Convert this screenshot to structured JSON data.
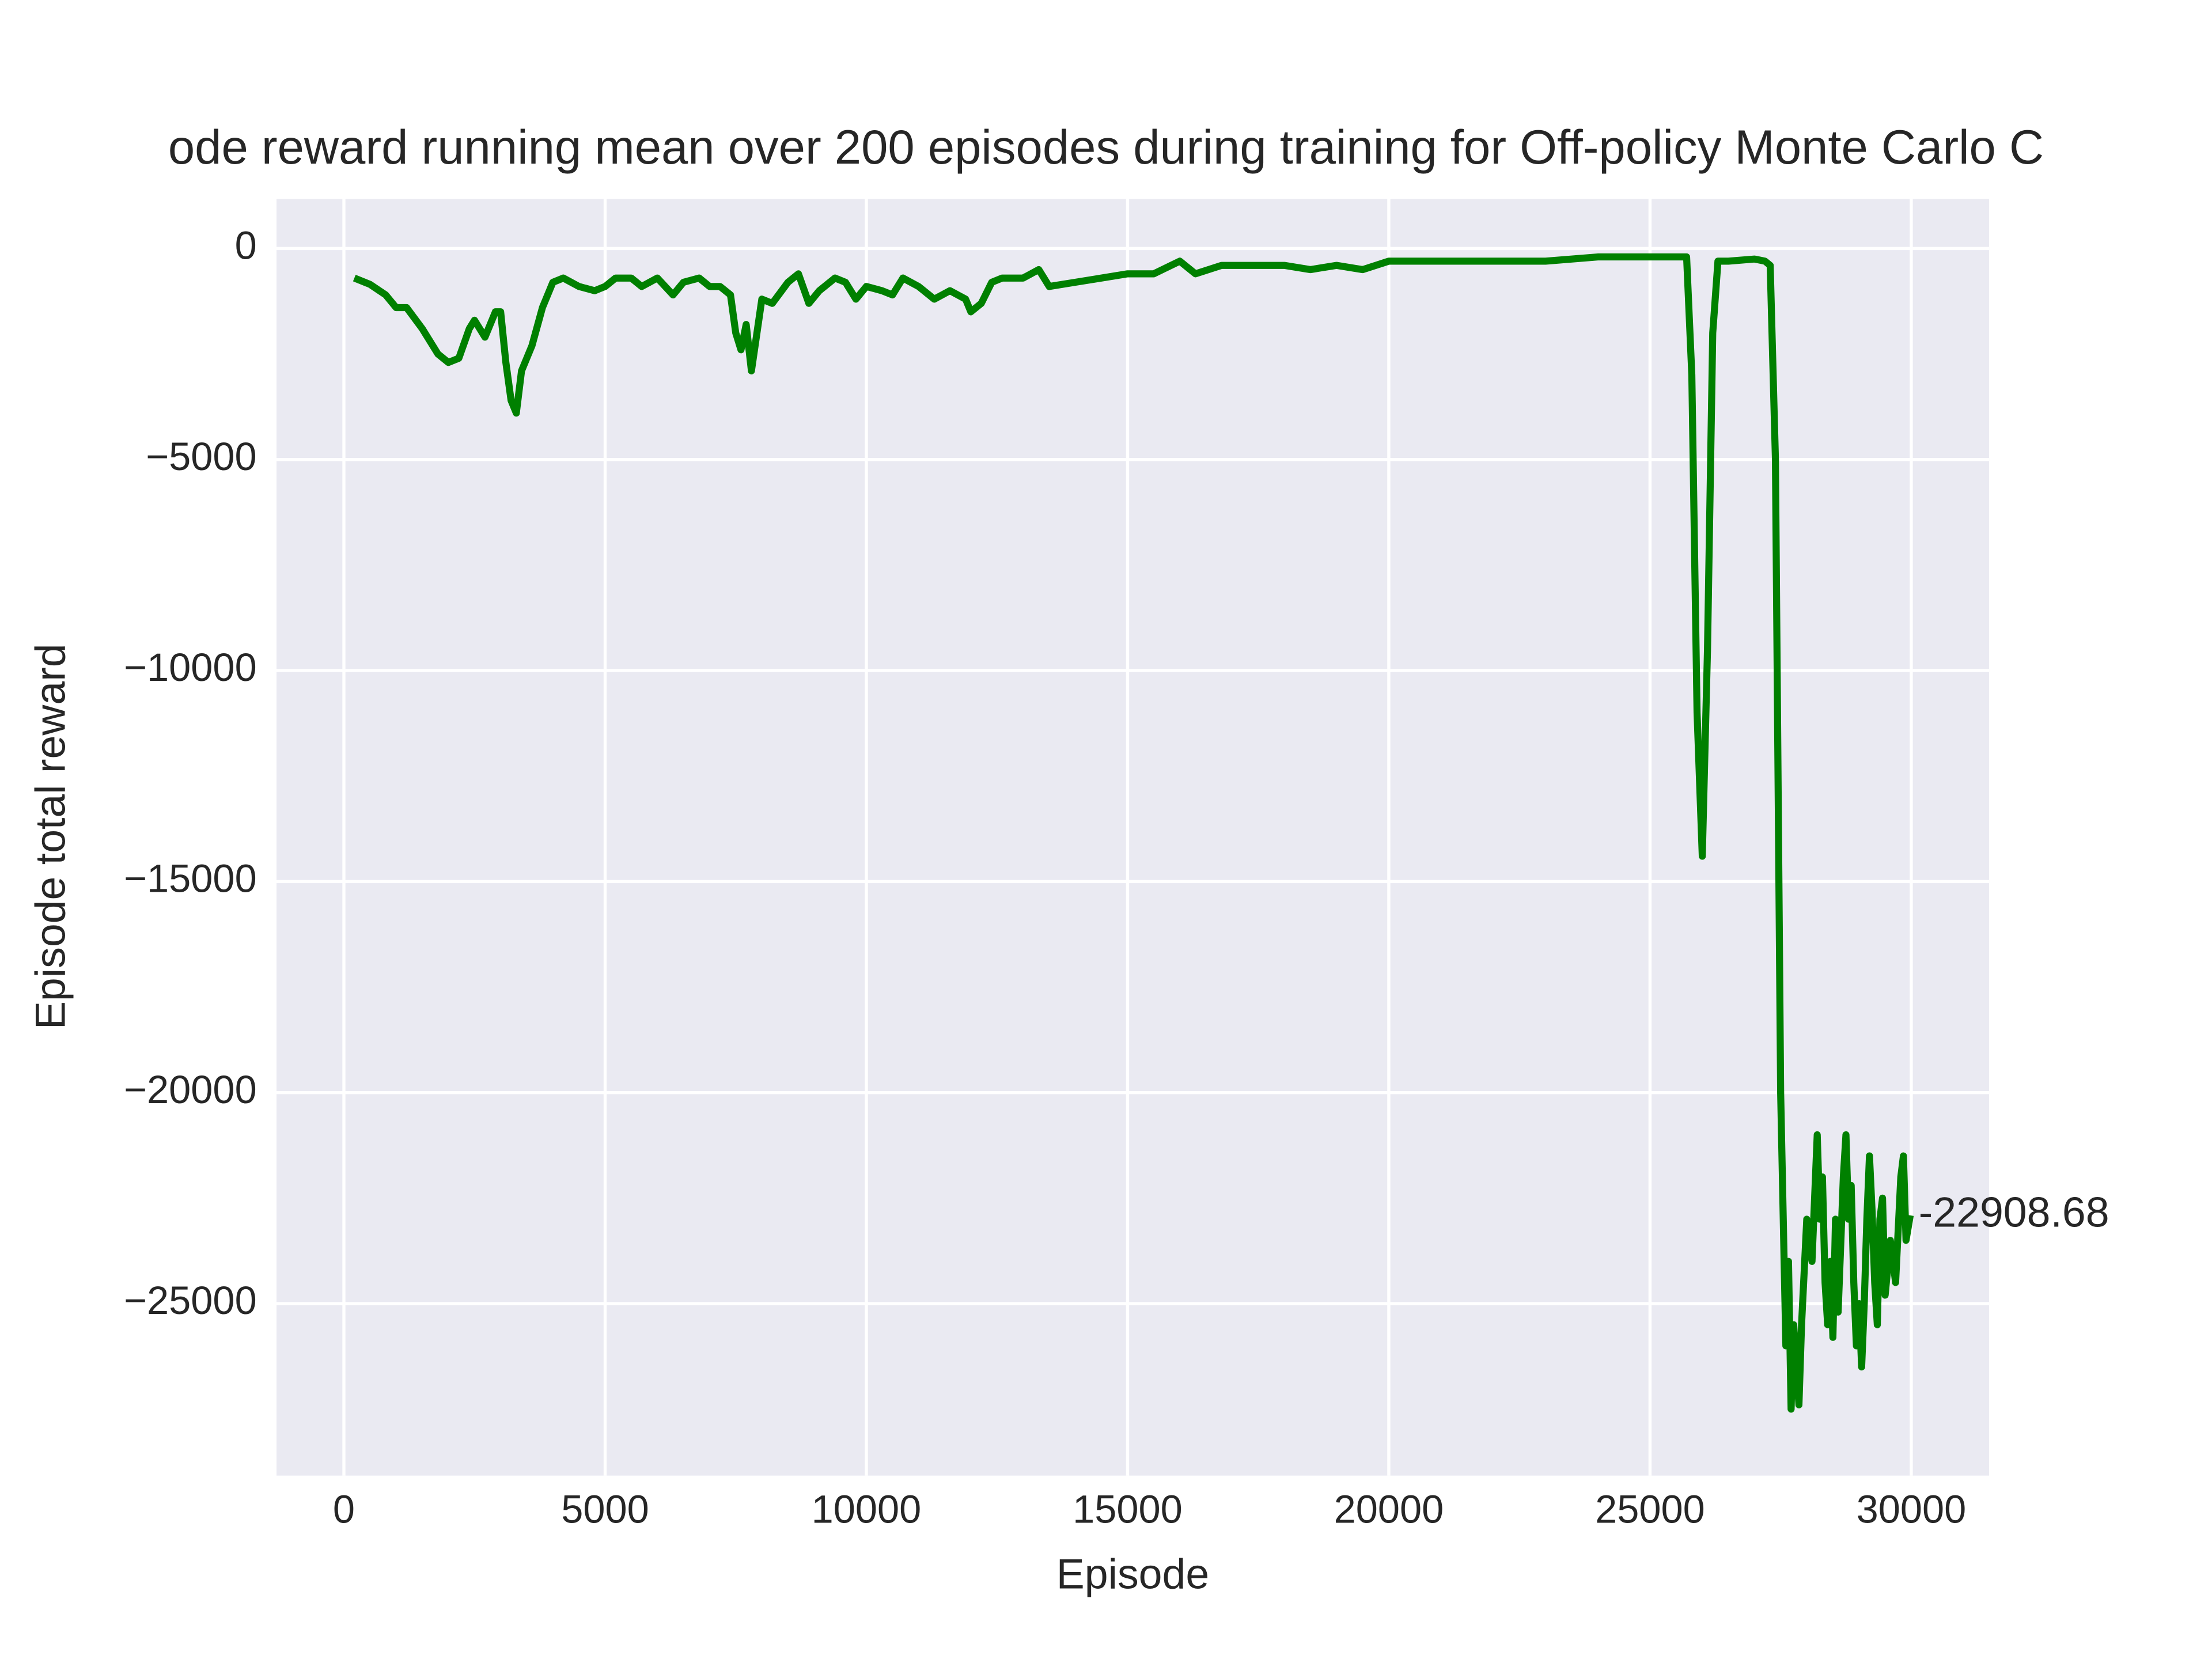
{
  "chart_data": {
    "type": "line",
    "title": "ode reward running mean over 200 episodes during training for Off-policy Monte Carlo C",
    "x_label": "Episode",
    "y_label": "Episode total reward",
    "color": "#008000",
    "grid": true,
    "x": [
      200,
      500,
      800,
      1000,
      1200,
      1500,
      1800,
      2000,
      2200,
      2400,
      2500,
      2700,
      2900,
      3000,
      3100,
      3200,
      3300,
      3400,
      3600,
      3800,
      4000,
      4200,
      4500,
      4800,
      5000,
      5200,
      5500,
      5700,
      6000,
      6300,
      6500,
      6800,
      7000,
      7200,
      7400,
      7500,
      7600,
      7700,
      7800,
      8000,
      8200,
      8500,
      8700,
      8900,
      9100,
      9400,
      9600,
      9800,
      10000,
      10300,
      10500,
      10700,
      11000,
      11300,
      11600,
      11900,
      12000,
      12200,
      12400,
      12600,
      13000,
      13300,
      13500,
      14000,
      14500,
      15000,
      15500,
      16000,
      16300,
      16800,
      17500,
      18000,
      18500,
      19000,
      19500,
      20000,
      21000,
      22000,
      23000,
      24000,
      25000,
      25700,
      25800,
      25900,
      26000,
      26100,
      26200,
      26300,
      26500,
      27000,
      27200,
      27300,
      27400,
      27500,
      27600,
      27650,
      27700,
      27750,
      27800,
      27850,
      27900,
      28000,
      28100,
      28150,
      28200,
      28250,
      28300,
      28350,
      28400,
      28450,
      28500,
      28550,
      28600,
      28700,
      28750,
      28800,
      28850,
      28900,
      28950,
      29000,
      29050,
      29100,
      29150,
      29200,
      29250,
      29300,
      29350,
      29400,
      29450,
      29500,
      29600,
      29700,
      29800,
      29850,
      29900,
      29980
    ],
    "values": [
      -700,
      -850,
      -1100,
      -1400,
      -1400,
      -1900,
      -2500,
      -2700,
      -2600,
      -1900,
      -1700,
      -2100,
      -1500,
      -1500,
      -2700,
      -3600,
      -3900,
      -2900,
      -2300,
      -1400,
      -800,
      -700,
      -900,
      -1000,
      -900,
      -700,
      -700,
      -900,
      -700,
      -1100,
      -800,
      -700,
      -900,
      -900,
      -1100,
      -2000,
      -2400,
      -1800,
      -2900,
      -1200,
      -1300,
      -800,
      -600,
      -1300,
      -1000,
      -700,
      -800,
      -1200,
      -900,
      -1000,
      -1100,
      -700,
      -900,
      -1200,
      -1000,
      -1200,
      -1500,
      -1300,
      -800,
      -700,
      -700,
      -500,
      -900,
      -800,
      -700,
      -600,
      -600,
      -300,
      -600,
      -400,
      -400,
      -400,
      -500,
      -400,
      -500,
      -300,
      -300,
      -300,
      -300,
      -200,
      -200,
      -200,
      -3000,
      -11000,
      -14400,
      -9500,
      -2000,
      -300,
      -300,
      -250,
      -300,
      -400,
      -5000,
      -20000,
      -26000,
      -24000,
      -27500,
      -25500,
      -26500,
      -27400,
      -25500,
      -23000,
      -24000,
      -22500,
      -21000,
      -23000,
      -22000,
      -24500,
      -25500,
      -24000,
      -25800,
      -23000,
      -25200,
      -22000,
      -21000,
      -23000,
      -22200,
      -24500,
      -26000,
      -25000,
      -26500,
      -25000,
      -23000,
      -21500,
      -22800,
      -24500,
      -25500,
      -23000,
      -22500,
      -24800,
      -23500,
      -24500,
      -22000,
      -21500,
      -23500,
      -22908.68
    ],
    "xlim": [
      -1290,
      31490
    ],
    "ylim": [
      -29075,
      1175
    ],
    "xticks": [
      0,
      5000,
      10000,
      15000,
      20000,
      25000,
      30000
    ],
    "yticks": [
      0,
      {
        "value": -5000,
        "label": "−5000"
      },
      {
        "value": -10000,
        "label": "−10000"
      },
      {
        "value": -15000,
        "label": "−15000"
      },
      {
        "value": -20000,
        "label": "−20000"
      },
      {
        "value": -25000,
        "label": "−25000"
      }
    ]
  }
}
